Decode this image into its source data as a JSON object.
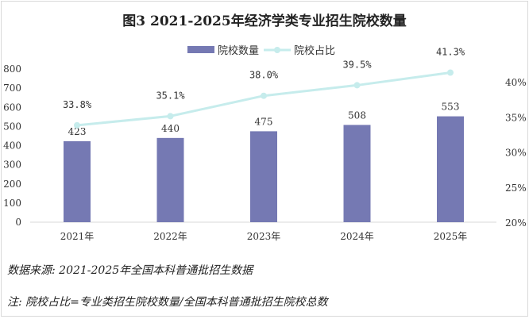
{
  "chart_data": {
    "type": "bar+line",
    "title": "图3  2021-2025年经济学类专业招生院校数量",
    "categories": [
      "2021年",
      "2022年",
      "2023年",
      "2024年",
      "2025年"
    ],
    "series": [
      {
        "name": "院校数量",
        "type": "bar",
        "axis": "left",
        "color": "#7579b3",
        "values": [
          423,
          440,
          475,
          508,
          553
        ],
        "labels": [
          "423",
          "440",
          "475",
          "508",
          "553"
        ]
      },
      {
        "name": "院校占比",
        "type": "line",
        "axis": "right",
        "color": "#c6ecec",
        "values": [
          33.8,
          35.1,
          38.0,
          39.5,
          41.3
        ],
        "labels": [
          "33.8%",
          "35.1%",
          "38.0%",
          "39.5%",
          "41.3%"
        ]
      }
    ],
    "left_axis": {
      "ylim": [
        0,
        800
      ],
      "ticks": [
        "0",
        "100",
        "200",
        "300",
        "400",
        "500",
        "600",
        "700",
        "800"
      ]
    },
    "right_axis": {
      "ticks": [
        "20%",
        "25%",
        "30%",
        "35%",
        "40%"
      ],
      "tick_values": [
        20,
        25,
        30,
        35,
        40
      ]
    },
    "legend_position": "top-center",
    "grid": false
  },
  "notes": {
    "source": "数据来源:  2021-2025年全国本科普通批招生数据",
    "footnote": "注:  院校占比=专业类招生院校数量/全国本科普通批招生院校总数"
  }
}
